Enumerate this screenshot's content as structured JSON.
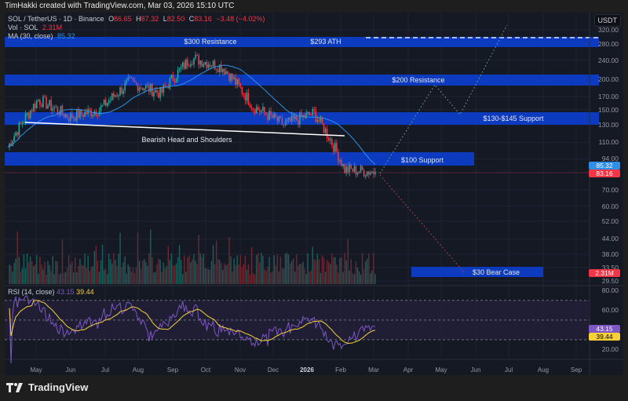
{
  "header": {
    "credit": "TimHakki created with TradingView.com, Mar 03, 2026 15:10 UTC"
  },
  "legend": {
    "symbol": "SOL / TetherUS · 1D · Binance",
    "open_label": "O",
    "open": "86.65",
    "high_label": "H",
    "high": "87.32",
    "low_label": "L",
    "low": "82.50",
    "close_label": "C",
    "close": "83.16",
    "change": "−3.48 (−4.02%)",
    "vol_label": "Vol · SOL",
    "vol_value": "2.31M",
    "ma_label": "MA (30, close)",
    "ma_value": "85.32"
  },
  "rsi_legend": {
    "label": "RSI (14, close)",
    "rsi": "43.15",
    "ma": "39.44"
  },
  "axis": {
    "currency": "USDT",
    "price_ticks": [
      "320.00",
      "280.00",
      "240.00",
      "200.00",
      "170.00",
      "150.00",
      "130.00",
      "110.00",
      "94.00",
      "70.00",
      "60.00",
      "52.00",
      "44.00",
      "38.00",
      "33.50",
      "29.50"
    ],
    "rsi_ticks": [
      "80.00",
      "60.00",
      "20.00"
    ],
    "price_tags": {
      "ma": "85.32",
      "close": "83.16",
      "volume": "2.31M",
      "rsi": "43.15",
      "rsi_ma": "39.44"
    },
    "x_ticks": [
      "May",
      "Jun",
      "Jul",
      "Aug",
      "Sep",
      "Oct",
      "Nov",
      "Dec",
      "2026",
      "Feb",
      "Mar",
      "Apr",
      "May",
      "Jun",
      "Jul",
      "Aug",
      "Sep"
    ]
  },
  "colors": {
    "up": "#26a69a",
    "down": "#f23645",
    "zone": "#0d3bbf",
    "ma": "#2f8fe6",
    "rsi": "#7e57c2",
    "rsi_ma": "#f7d038",
    "bg": "#151924"
  },
  "annotations": {
    "res300": "$300 Resistance",
    "ath": "$293 ATH",
    "res200": "$200 Resistance",
    "sup130": "$130-$145 Support",
    "sup100": "$100 Support",
    "bear30": "$30 Bear Case",
    "pattern": "Bearish Head and Shoulders"
  },
  "footer": {
    "brand": "TradingView"
  },
  "chart_data": {
    "type": "candlestick",
    "title": "SOL / TetherUS · 1D · Binance",
    "xlabel": "",
    "ylabel": "USDT",
    "x_ticks": [
      "May",
      "Jun",
      "Jul",
      "Aug",
      "Sep",
      "Oct",
      "Nov",
      "Dec",
      "2026",
      "Feb",
      "Mar",
      "Apr",
      "May",
      "Jun",
      "Jul",
      "Aug",
      "Sep"
    ],
    "y_ticks": [
      320,
      280,
      240,
      200,
      170,
      150,
      130,
      110,
      94,
      70,
      60,
      52,
      44,
      38,
      33.5,
      29.5
    ],
    "y_scale": "log",
    "last_bar": {
      "open": 86.65,
      "high": 87.32,
      "low": 82.5,
      "close": 83.16,
      "change": -3.48,
      "change_pct": -4.02
    },
    "approx_close_path": [
      {
        "x": "Apr 2025",
        "value": 105
      },
      {
        "x": "May 2025",
        "value": 165
      },
      {
        "x": "Jun 2025",
        "value": 140
      },
      {
        "x": "Jul 2025",
        "value": 150
      },
      {
        "x": "Jul 2025 late",
        "value": 195
      },
      {
        "x": "Aug 2025",
        "value": 175
      },
      {
        "x": "Sep 2025",
        "value": 245
      },
      {
        "x": "Oct 2025",
        "value": 225
      },
      {
        "x": "Nov 2025",
        "value": 155
      },
      {
        "x": "Dec 2025",
        "value": 130
      },
      {
        "x": "Jan 2026",
        "value": 145
      },
      {
        "x": "Feb 2026",
        "value": 85
      },
      {
        "x": "Mar 2026",
        "value": 83
      }
    ],
    "series": [
      {
        "name": "MA (30, close)",
        "last": 85.32
      },
      {
        "name": "Vol · SOL",
        "last": "2.31M"
      },
      {
        "name": "RSI (14, close)",
        "last": 43.15
      },
      {
        "name": "RSI MA",
        "last": 39.44
      }
    ],
    "zones": [
      {
        "label": "$300 Resistance / $293 ATH",
        "from": 285,
        "to": 300
      },
      {
        "label": "$200 Resistance",
        "from": 190,
        "to": 205
      },
      {
        "label": "$130-$145 Support",
        "from": 130,
        "to": 145
      },
      {
        "label": "$100 Support",
        "from": 92,
        "to": 103
      },
      {
        "label": "$30 Bear Case",
        "from": 30,
        "to": 33
      }
    ],
    "projections": [
      {
        "name": "bull path",
        "points": [
          83,
          200,
          140,
          320
        ]
      },
      {
        "name": "bear path",
        "points": [
          83,
          30
        ]
      }
    ],
    "rsi_levels": [
      70,
      50,
      30
    ]
  }
}
